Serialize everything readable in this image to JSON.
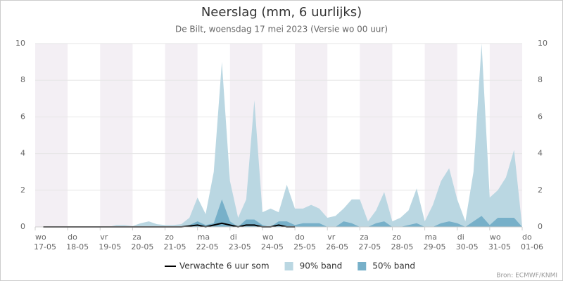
{
  "chart_data": {
    "type": "area",
    "title": "Neerslag (mm, 6 uurlijks)",
    "subtitle": "De Bilt, woensdag 17 mei 2023 (Versie wo 00 uur)",
    "categories": [
      "17-05",
      null,
      null,
      null,
      "18-05",
      null,
      null,
      null,
      "19-05",
      null,
      null,
      null,
      "20-05",
      null,
      null,
      null,
      "21-05",
      null,
      null,
      null,
      "22-05",
      null,
      null,
      null,
      "23-05",
      null,
      null,
      null,
      "24-05",
      null,
      null,
      null,
      "25-05",
      null,
      null,
      null,
      "26-05",
      null,
      null,
      null,
      "27-05",
      null,
      null,
      null,
      "28-05",
      null,
      null,
      null,
      "29-05",
      null,
      null,
      null,
      "30-05",
      null,
      null,
      null,
      "31-05",
      null,
      null,
      null,
      "01-06"
    ],
    "weekdays": [
      "wo",
      null,
      null,
      null,
      "do",
      null,
      null,
      null,
      "vr",
      null,
      null,
      null,
      "za",
      null,
      null,
      null,
      "zo",
      null,
      null,
      null,
      "ma",
      null,
      null,
      null,
      "di",
      null,
      null,
      null,
      "wo",
      null,
      null,
      null,
      "do",
      null,
      null,
      null,
      "vr",
      null,
      null,
      null,
      "za",
      null,
      null,
      null,
      "zo",
      null,
      null,
      null,
      "ma",
      null,
      null,
      null,
      "di",
      null,
      null,
      null,
      "wo",
      null,
      null,
      null,
      "do"
    ],
    "series": [
      {
        "name": "Verwachte 6 uur som",
        "type": "line",
        "color": "#000000",
        "values": [
          null,
          0,
          0,
          0,
          0,
          0,
          0,
          0,
          0,
          0,
          0,
          0,
          0,
          0,
          0,
          0,
          0,
          0,
          0,
          0.05,
          0.1,
          0,
          0.1,
          0.2,
          0.1,
          0,
          0.1,
          0.1,
          0,
          0,
          0.1,
          0,
          0,
          null,
          null,
          null,
          null,
          null,
          null,
          null,
          null,
          null,
          null,
          null,
          null,
          null,
          null,
          null,
          null,
          null,
          null,
          null,
          null,
          null,
          null,
          null,
          null,
          null,
          null,
          null,
          null
        ]
      },
      {
        "name": "90% band",
        "type": "area",
        "color": "#bad7e2",
        "values": [
          0,
          0,
          0,
          0,
          0,
          0,
          0,
          0,
          0,
          0,
          0.1,
          0.1,
          0.05,
          0.2,
          0.3,
          0.15,
          0.1,
          0.1,
          0.15,
          0.5,
          1.6,
          0.7,
          3,
          9,
          2.5,
          0.5,
          1.5,
          6.9,
          0.8,
          1.0,
          0.8,
          2.3,
          1.0,
          1.0,
          1.2,
          1.0,
          0.5,
          0.6,
          1.0,
          1.5,
          1.5,
          0.3,
          0.9,
          1.9,
          0.3,
          0.5,
          0.9,
          2.1,
          0.3,
          1.2,
          2.5,
          3.2,
          1.5,
          0.3,
          3.0,
          10,
          1.6,
          2.0,
          2.7,
          4.2,
          0
        ]
      },
      {
        "name": "50% band",
        "type": "area",
        "color": "#77b0c9",
        "values": [
          0,
          0,
          0,
          0,
          0,
          0,
          0,
          0,
          0,
          0,
          0,
          0,
          0,
          0,
          0,
          0,
          0,
          0,
          0,
          0.1,
          0.3,
          0.1,
          0.2,
          1.5,
          0.3,
          0,
          0.4,
          0.4,
          0.1,
          0,
          0.3,
          0.3,
          0.1,
          0.2,
          0.2,
          0.2,
          0,
          0,
          0.3,
          0.2,
          0,
          0,
          0.2,
          0.3,
          0,
          0,
          0.1,
          0.2,
          0,
          0,
          0.2,
          0.3,
          0.2,
          0,
          0.3,
          0.6,
          0.1,
          0.5,
          0.5,
          0.5,
          0
        ]
      }
    ],
    "ylim": [
      0,
      10
    ],
    "yticks": [
      0,
      2,
      4,
      6,
      8,
      10
    ],
    "grid": true,
    "source": "Bron: ECMWF/KNMI"
  }
}
